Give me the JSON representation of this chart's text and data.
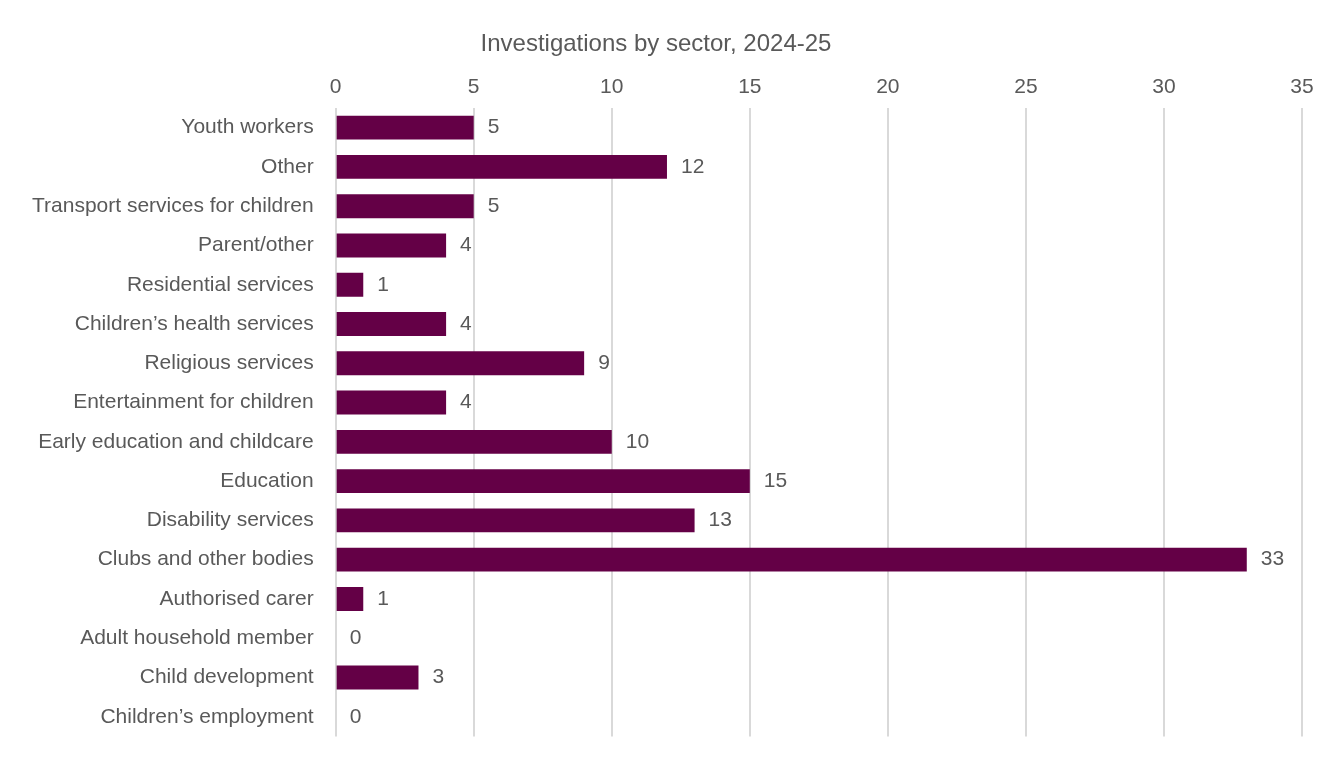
{
  "chart_data": {
    "type": "bar",
    "orientation": "horizontal",
    "title": "Investigations by sector, 2024-25",
    "categories": [
      "Youth workers",
      "Other",
      "Transport services for children",
      "Parent/other",
      "Residential services",
      "Children’s health services",
      "Religious services",
      "Entertainment for children",
      "Early education and childcare",
      "Education",
      "Disability services",
      "Clubs and other bodies",
      "Authorised carer",
      "Adult household member",
      "Child development",
      "Children’s employment"
    ],
    "values": [
      5,
      12,
      5,
      4,
      1,
      4,
      9,
      4,
      10,
      15,
      13,
      33,
      1,
      0,
      3,
      0
    ],
    "color": "#640046",
    "xlim": [
      0,
      35
    ],
    "xticks": [
      0,
      5,
      10,
      15,
      20,
      25,
      30,
      35
    ],
    "grid": "x",
    "data_labels": true
  }
}
